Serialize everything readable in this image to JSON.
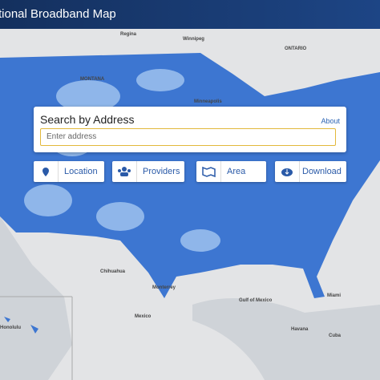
{
  "header": {
    "title": "tional Broadband Map"
  },
  "search": {
    "title": "Search by Address",
    "about": "About",
    "placeholder": "Enter address"
  },
  "buttons": [
    {
      "label": "Location"
    },
    {
      "label": "Providers"
    },
    {
      "label": "Area"
    },
    {
      "label": "Download"
    }
  ],
  "map_labels": [
    "Regina",
    "Winnipeg",
    "ONTARIO",
    "MONTANA",
    "Minneapolis",
    "Mexico",
    "Gulf of Mexico",
    "Havana",
    "Cuba",
    "Honolulu",
    "Miami",
    "Monterrey",
    "Chihuahua"
  ]
}
